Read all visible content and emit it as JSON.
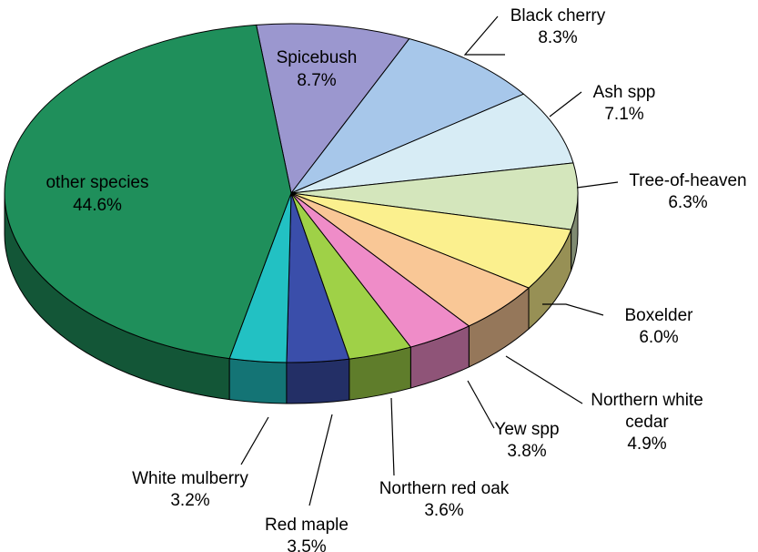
{
  "chart_data": {
    "type": "pie",
    "style": "3d",
    "title": "",
    "slices": [
      {
        "label": "Spicebush",
        "value": 8.7,
        "pct_text": "8.7%",
        "color": "#9b97cf",
        "label_pos": "inside",
        "text_lines": [
          "Spicebush"
        ]
      },
      {
        "label": "Black cherry",
        "value": 8.3,
        "pct_text": "8.3%",
        "color": "#a7c7ea",
        "label_pos": "outside",
        "text_lines": [
          "Black cherry"
        ]
      },
      {
        "label": "Ash spp",
        "value": 7.1,
        "pct_text": "7.1%",
        "color": "#d7ecf5",
        "label_pos": "outside",
        "text_lines": [
          "Ash spp"
        ]
      },
      {
        "label": "Tree-of-heaven",
        "value": 6.3,
        "pct_text": "6.3%",
        "color": "#d4e6bc",
        "label_pos": "outside",
        "text_lines": [
          "Tree-of-heaven"
        ]
      },
      {
        "label": "Boxelder",
        "value": 6.0,
        "pct_text": "6.0%",
        "color": "#fbf08e",
        "label_pos": "outside",
        "text_lines": [
          "Boxelder"
        ]
      },
      {
        "label": "Northern white cedar",
        "value": 4.9,
        "pct_text": "4.9%",
        "color": "#f9c796",
        "label_pos": "outside",
        "text_lines": [
          "Northern white",
          "cedar"
        ]
      },
      {
        "label": "Yew spp",
        "value": 3.8,
        "pct_text": "3.8%",
        "color": "#ef8cc8",
        "label_pos": "outside",
        "text_lines": [
          "Yew spp"
        ]
      },
      {
        "label": "Northern red oak",
        "value": 3.6,
        "pct_text": "3.6%",
        "color": "#9fd147",
        "label_pos": "outside",
        "text_lines": [
          "Northern red oak"
        ]
      },
      {
        "label": "Red maple",
        "value": 3.5,
        "pct_text": "3.5%",
        "color": "#3a4eaa",
        "label_pos": "outside",
        "text_lines": [
          "Red maple"
        ]
      },
      {
        "label": "White mulberry",
        "value": 3.2,
        "pct_text": "3.2%",
        "color": "#22c1c3",
        "label_pos": "outside",
        "text_lines": [
          "White mulberry"
        ]
      },
      {
        "label": "other species",
        "value": 44.6,
        "pct_text": "44.6%",
        "color": "#1f8f5b",
        "label_pos": "inside",
        "text_lines": [
          "other species"
        ]
      }
    ]
  }
}
